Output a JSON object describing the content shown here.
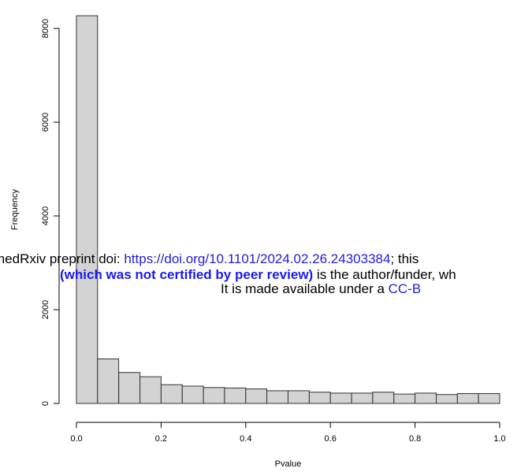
{
  "chart_data": {
    "type": "bar",
    "xlabel": "Pvalue",
    "ylabel": "Frequency",
    "xlim": [
      0,
      1
    ],
    "ylim": [
      0,
      8270
    ],
    "xticks": [
      "0.0",
      "0.2",
      "0.4",
      "0.6",
      "0.8",
      "1.0"
    ],
    "yticks": [
      "0",
      "2000",
      "4000",
      "6000",
      "8000"
    ],
    "bin_width": 0.05,
    "bins": [
      {
        "x0": 0.0,
        "x1": 0.05,
        "value": 8270
      },
      {
        "x0": 0.05,
        "x1": 0.1,
        "value": 950
      },
      {
        "x0": 0.1,
        "x1": 0.15,
        "value": 660
      },
      {
        "x0": 0.15,
        "x1": 0.2,
        "value": 570
      },
      {
        "x0": 0.2,
        "x1": 0.25,
        "value": 400
      },
      {
        "x0": 0.25,
        "x1": 0.3,
        "value": 370
      },
      {
        "x0": 0.3,
        "x1": 0.35,
        "value": 340
      },
      {
        "x0": 0.35,
        "x1": 0.4,
        "value": 330
      },
      {
        "x0": 0.4,
        "x1": 0.45,
        "value": 310
      },
      {
        "x0": 0.45,
        "x1": 0.5,
        "value": 270
      },
      {
        "x0": 0.5,
        "x1": 0.55,
        "value": 270
      },
      {
        "x0": 0.55,
        "x1": 0.6,
        "value": 240
      },
      {
        "x0": 0.6,
        "x1": 0.65,
        "value": 220
      },
      {
        "x0": 0.65,
        "x1": 0.7,
        "value": 220
      },
      {
        "x0": 0.7,
        "x1": 0.75,
        "value": 240
      },
      {
        "x0": 0.75,
        "x1": 0.8,
        "value": 200
      },
      {
        "x0": 0.8,
        "x1": 0.85,
        "value": 220
      },
      {
        "x0": 0.85,
        "x1": 0.9,
        "value": 190
      },
      {
        "x0": 0.9,
        "x1": 0.95,
        "value": 210
      },
      {
        "x0": 0.95,
        "x1": 1.0,
        "value": 210
      }
    ],
    "bar_fill": "#d3d3d3",
    "bar_stroke": "#333333",
    "grid": false
  },
  "overlay": {
    "line1_prefix": "medRxiv preprint doi: ",
    "line1_link": "https://doi.org/10.1101/2024.02.26.24303384",
    "line1_suffix": "; this",
    "line2_bold": "(which was not certified by peer review)",
    "line2_suffix": " is the author/funder, wh",
    "line3_prefix": "It is made available under a ",
    "line3_link": "CC-B",
    "link_color": "#1f1fd6"
  }
}
